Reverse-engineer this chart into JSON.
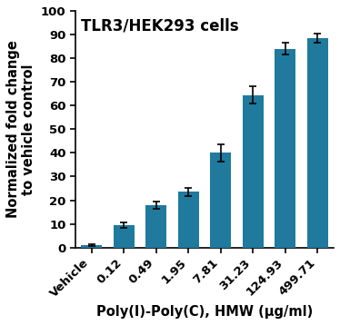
{
  "categories": [
    "Vehicle",
    "0.12",
    "0.49",
    "1.95",
    "7.81",
    "31.23",
    "124.93",
    "499.71"
  ],
  "values": [
    1.0,
    9.5,
    18.0,
    23.5,
    40.0,
    64.5,
    84.0,
    88.5
  ],
  "errors": [
    0.3,
    1.2,
    1.5,
    1.8,
    3.5,
    3.5,
    2.5,
    2.0
  ],
  "bar_color": "#1f7a9e",
  "title": "TLR3/HEK293 cells",
  "title_color": "#000000",
  "ylabel_line1": "Normalized fold change",
  "ylabel_line2": "to vehicle control",
  "xlabel": "Poly(I)-Poly(C), HMW (μg/ml)",
  "ylim": [
    0,
    100
  ],
  "yticks": [
    0,
    10,
    20,
    30,
    40,
    50,
    60,
    70,
    80,
    90,
    100
  ],
  "bar_width": 0.65,
  "title_fontsize": 12,
  "axis_label_fontsize": 10.5,
  "tick_fontsize": 9.5
}
